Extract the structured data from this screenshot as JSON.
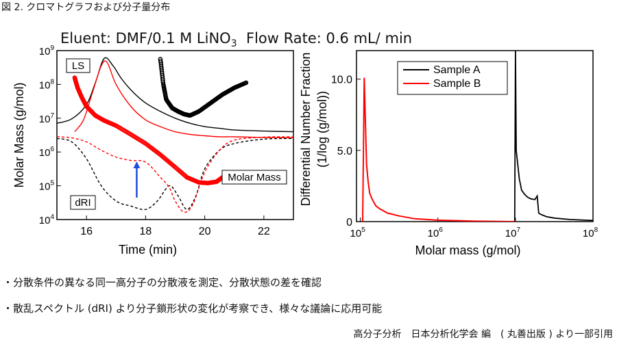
{
  "caption": "図 2. クロマトグラフおよび分子量分布",
  "suptitle_main": "Eluent: DMF/0.1 M LiNO",
  "suptitle_sub": "3",
  "suptitle_rest": "  Flow Rate: 0.6 mL/ min",
  "bullets": [
    "・分散条件の異なる同一高分子の分散液を測定、分散状態の差を確認",
    "・散乱スペクトル (dRI) より分子鎖形状の変化が考察でき、様々な議論に応用可能"
  ],
  "credit": "高分子分析　日本分析化学会 編　( 丸善出版 ) より一部引用",
  "chart_data": [
    {
      "type": "line",
      "xlabel": "Time (min)",
      "ylabel": "Molar Mass (g/mol)",
      "xlim": [
        15,
        23
      ],
      "ylim_log10": [
        4,
        9
      ],
      "y_scale": "log",
      "x_ticks": [
        16,
        18,
        20,
        22
      ],
      "y_ticks": [
        {
          "base": "10",
          "exp": "4"
        },
        {
          "base": "10",
          "exp": "5"
        },
        {
          "base": "10",
          "exp": "6"
        },
        {
          "base": "10",
          "exp": "7"
        },
        {
          "base": "10",
          "exp": "8"
        },
        {
          "base": "10",
          "exp": "9"
        }
      ],
      "annotations": {
        "ls": "LS",
        "dri": "dRI",
        "molar_mass": "Molar Mass"
      },
      "colors": {
        "sample_a": "#000000",
        "sample_b": "#ff0000",
        "arrow": "#1f4fd6"
      },
      "arrow_at": {
        "x": 17.7,
        "from_log10": 4.65,
        "to_log10": 5.72
      },
      "series": [
        {
          "id": "ls-a",
          "color": "#000000",
          "style": "solid",
          "x": [
            15,
            15.5,
            16,
            16.3,
            16.6,
            16.9,
            17.2,
            17.6,
            18,
            18.5,
            19,
            19.5,
            20,
            20.5,
            21,
            22,
            23
          ],
          "y_log10": [
            6.85,
            6.98,
            7.4,
            8.05,
            8.77,
            8.55,
            8.15,
            7.75,
            7.45,
            7.2,
            7.0,
            6.85,
            6.75,
            6.7,
            6.65,
            6.62,
            6.6
          ]
        },
        {
          "id": "ls-b",
          "color": "#ff0000",
          "style": "solid",
          "x": [
            15.6,
            15.9,
            16.2,
            16.5,
            16.7,
            17.0,
            17.5,
            18,
            18.5,
            19,
            19.5,
            20,
            20.5,
            21,
            22,
            23
          ],
          "y_log10": [
            6.6,
            6.95,
            7.75,
            8.55,
            8.65,
            8.0,
            7.35,
            6.95,
            6.75,
            6.6,
            6.52,
            6.48,
            6.45,
            6.45,
            6.43,
            6.42
          ]
        },
        {
          "id": "dri-a",
          "color": "#000000",
          "style": "dashed",
          "x": [
            15,
            15.5,
            16,
            16.5,
            17,
            17.5,
            18,
            18.4,
            18.8,
            19.1,
            19.4,
            19.7,
            20,
            20.5,
            21,
            22,
            23
          ],
          "y_log10": [
            6.4,
            6.3,
            5.8,
            5.0,
            4.55,
            4.4,
            4.3,
            4.55,
            5.0,
            4.7,
            4.3,
            4.7,
            5.5,
            6.05,
            6.25,
            6.38,
            6.4
          ]
        },
        {
          "id": "dri-b",
          "color": "#ff0000",
          "style": "dashed",
          "x": [
            15,
            15.5,
            16,
            16.5,
            17,
            17.5,
            18,
            18.5,
            18.8,
            19.0,
            19.3,
            19.6,
            20,
            20.5,
            21,
            22,
            23
          ],
          "y_log10": [
            6.45,
            6.42,
            6.3,
            6.05,
            5.85,
            5.75,
            5.7,
            5.25,
            4.95,
            4.55,
            4.22,
            4.45,
            5.4,
            6.05,
            6.35,
            6.44,
            6.45
          ]
        },
        {
          "id": "mm-a",
          "color": "#000000",
          "style": "markers",
          "x": [
            18.5,
            18.6,
            18.7,
            18.9,
            19.1,
            19.3,
            19.5,
            19.8,
            20.2,
            20.6,
            21.0,
            21.4
          ],
          "y_log10": [
            8.75,
            8.0,
            7.55,
            7.3,
            7.2,
            7.12,
            7.08,
            7.2,
            7.45,
            7.7,
            7.9,
            8.05
          ]
        },
        {
          "id": "mm-b",
          "color": "#ff0000",
          "style": "markers",
          "x": [
            15.6,
            15.7,
            15.85,
            16.0,
            16.3,
            16.6,
            17.0,
            17.5,
            18.0,
            18.5,
            19.0,
            19.4,
            19.8,
            20.1,
            20.4,
            20.6
          ],
          "y_log10": [
            8.2,
            7.9,
            7.6,
            7.35,
            7.08,
            6.93,
            6.78,
            6.52,
            6.25,
            5.92,
            5.55,
            5.25,
            5.1,
            5.08,
            5.12,
            5.25
          ]
        }
      ]
    },
    {
      "type": "line",
      "xlabel": "Molar mass (g/mol)",
      "ylabel": "Differential Number Fraction",
      "ylabel2": "(1/log (g/mol))",
      "x_scale": "log",
      "xlim_log10": [
        4.95,
        8
      ],
      "ylim": [
        0,
        12
      ],
      "y_ticks": [
        "0",
        "5.0",
        "10.0"
      ],
      "x_ticks": [
        {
          "base": "10",
          "exp": "5"
        },
        {
          "base": "10",
          "exp": "6"
        },
        {
          "base": "10",
          "exp": "7"
        },
        {
          "base": "10",
          "exp": "8"
        }
      ],
      "legend_position": "top-right",
      "series": [
        {
          "name": "Sample A",
          "color": "#000000",
          "x_log10": [
            6.99,
            7.0,
            7.01,
            7.05,
            7.08,
            7.12,
            7.16,
            7.2,
            7.25,
            7.28,
            7.3,
            7.33,
            7.4,
            7.5,
            7.7,
            7.9,
            8.0
          ],
          "y": [
            0,
            12,
            5.0,
            3.0,
            2.2,
            1.9,
            1.7,
            1.6,
            1.55,
            1.8,
            0.6,
            0.5,
            0.35,
            0.25,
            0.15,
            0.1,
            0.08
          ]
        },
        {
          "name": "Sample B",
          "color": "#ff0000",
          "x_log10": [
            5.03,
            5.05,
            5.08,
            5.1,
            5.12,
            5.15,
            5.2,
            5.25,
            5.35,
            5.5,
            5.7,
            6.0,
            6.5,
            7.0
          ],
          "y": [
            0,
            10.1,
            4.0,
            2.8,
            2.0,
            1.6,
            1.1,
            0.9,
            0.6,
            0.4,
            0.2,
            0.1,
            0.03,
            0.0
          ]
        }
      ]
    }
  ]
}
